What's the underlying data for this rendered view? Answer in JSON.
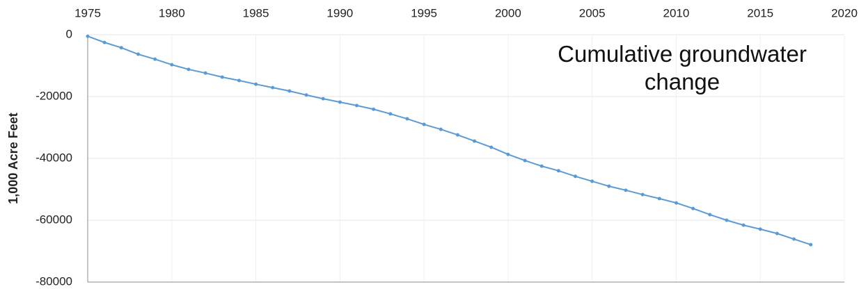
{
  "chart_data": {
    "type": "line",
    "y_label": "1,000 Acre Feet",
    "annotation": "Cumulative groundwater change",
    "x": [
      1975,
      1976,
      1977,
      1978,
      1979,
      1980,
      1981,
      1982,
      1983,
      1984,
      1985,
      1986,
      1987,
      1988,
      1989,
      1990,
      1991,
      1992,
      1993,
      1994,
      1995,
      1996,
      1997,
      1998,
      1999,
      2000,
      2001,
      2002,
      2003,
      2004,
      2005,
      2006,
      2007,
      2008,
      2009,
      2010,
      2011,
      2012,
      2013,
      2014,
      2015,
      2016,
      2017,
      2018
    ],
    "series": [
      {
        "name": "Cumulative groundwater change",
        "color": "#5b9bd5",
        "values": [
          -500,
          -2500,
          -4200,
          -6300,
          -7900,
          -9700,
          -11200,
          -12400,
          -13700,
          -14800,
          -16000,
          -17100,
          -18200,
          -19500,
          -20700,
          -21800,
          -22900,
          -24100,
          -25600,
          -27200,
          -29000,
          -30600,
          -32400,
          -34400,
          -36400,
          -38700,
          -40700,
          -42500,
          -44000,
          -45800,
          -47400,
          -49000,
          -50300,
          -51700,
          -53000,
          -54400,
          -56200,
          -58200,
          -60000,
          -61600,
          -62900,
          -64300,
          -66100,
          -67900
        ]
      }
    ],
    "xlim": [
      1975,
      2020
    ],
    "xticks": [
      1975,
      1980,
      1985,
      1990,
      1995,
      2000,
      2005,
      2010,
      2015,
      2020
    ],
    "ylim": [
      -80000,
      0
    ],
    "yticks": [
      0,
      -20000,
      -40000,
      -60000,
      -80000
    ],
    "grid": true
  }
}
